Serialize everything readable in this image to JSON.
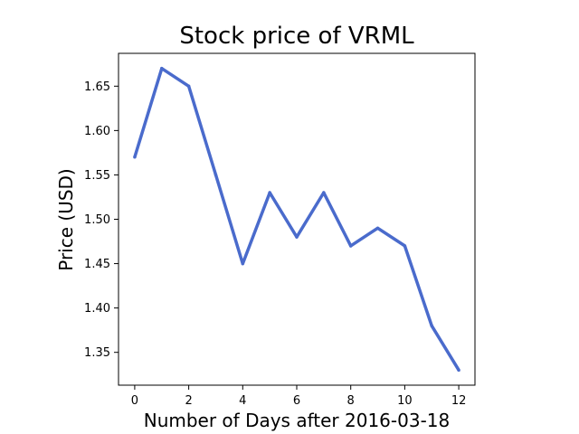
{
  "chart_data": {
    "type": "line",
    "title": "Stock price of VRML",
    "xlabel": "Number of Days after 2016-03-18",
    "ylabel": "Price (USD)",
    "x": [
      0,
      1,
      2,
      3,
      4,
      5,
      6,
      7,
      8,
      9,
      10,
      11,
      12
    ],
    "series": [
      {
        "values": [
          1.57,
          1.67,
          1.65,
          1.55,
          1.45,
          1.53,
          1.48,
          1.53,
          1.47,
          1.49,
          1.47,
          1.38,
          1.33
        ]
      }
    ],
    "xlim": [
      -0.6,
      12.6
    ],
    "ylim": [
      1.313,
      1.687
    ],
    "xticks": [
      0,
      2,
      4,
      6,
      8,
      10,
      12
    ],
    "xtick_labels": [
      "0",
      "2",
      "4",
      "6",
      "8",
      "10",
      "12"
    ],
    "yticks": [
      1.35,
      1.4,
      1.45,
      1.5,
      1.55,
      1.6,
      1.65
    ],
    "ytick_labels": [
      "1.35",
      "1.40",
      "1.45",
      "1.50",
      "1.55",
      "1.60",
      "1.65"
    ],
    "grid": false,
    "line_color": "#4a6bcc"
  }
}
